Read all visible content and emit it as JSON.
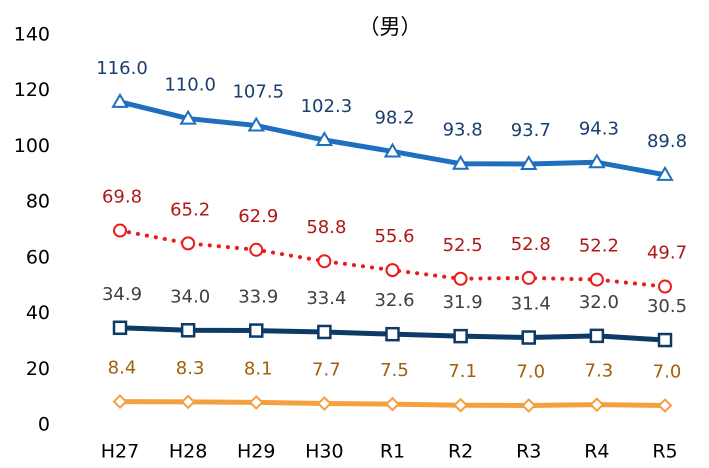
{
  "chart_data": {
    "type": "line",
    "title": "（男）",
    "categories": [
      "H27",
      "H28",
      "H29",
      "H30",
      "R1",
      "R2",
      "R3",
      "R4",
      "R5"
    ],
    "ylim": [
      0,
      140
    ],
    "yticks": [
      0,
      20,
      40,
      60,
      80,
      100,
      120,
      140
    ],
    "grid": false,
    "series": [
      {
        "color": "#1f6fbf",
        "label_color": "#1a3e6e",
        "marker": "triangle",
        "dashed": false,
        "values": [
          116.0,
          110.0,
          107.5,
          102.3,
          98.2,
          93.8,
          93.7,
          94.3,
          89.8
        ],
        "value_labels": [
          "116.0",
          "110.0",
          "107.5",
          "102.3",
          "98.2",
          "93.8",
          "93.7",
          "94.3",
          "89.8"
        ]
      },
      {
        "color": "#e81c1c",
        "label_color": "#b01818",
        "marker": "circle",
        "dashed": true,
        "values": [
          69.8,
          65.2,
          62.9,
          58.8,
          55.6,
          52.5,
          52.8,
          52.2,
          49.7
        ],
        "value_labels": [
          "69.8",
          "65.2",
          "62.9",
          "58.8",
          "55.6",
          "52.5",
          "52.8",
          "52.2",
          "49.7"
        ]
      },
      {
        "color": "#0d3a66",
        "label_color": "#404040",
        "marker": "square",
        "dashed": false,
        "values": [
          34.9,
          34.0,
          33.9,
          33.4,
          32.6,
          31.9,
          31.4,
          32.0,
          30.5
        ],
        "value_labels": [
          "34.9",
          "34.0",
          "33.9",
          "33.4",
          "32.6",
          "31.9",
          "31.4",
          "32.0",
          "30.5"
        ]
      },
      {
        "color": "#f4a040",
        "label_color": "#a0600a",
        "marker": "diamond",
        "dashed": false,
        "values": [
          8.4,
          8.3,
          8.1,
          7.7,
          7.5,
          7.1,
          7.0,
          7.3,
          7.0
        ],
        "value_labels": [
          "8.4",
          "8.3",
          "8.1",
          "7.7",
          "7.5",
          "7.1",
          "7.0",
          "7.3",
          "7.0"
        ]
      }
    ]
  }
}
